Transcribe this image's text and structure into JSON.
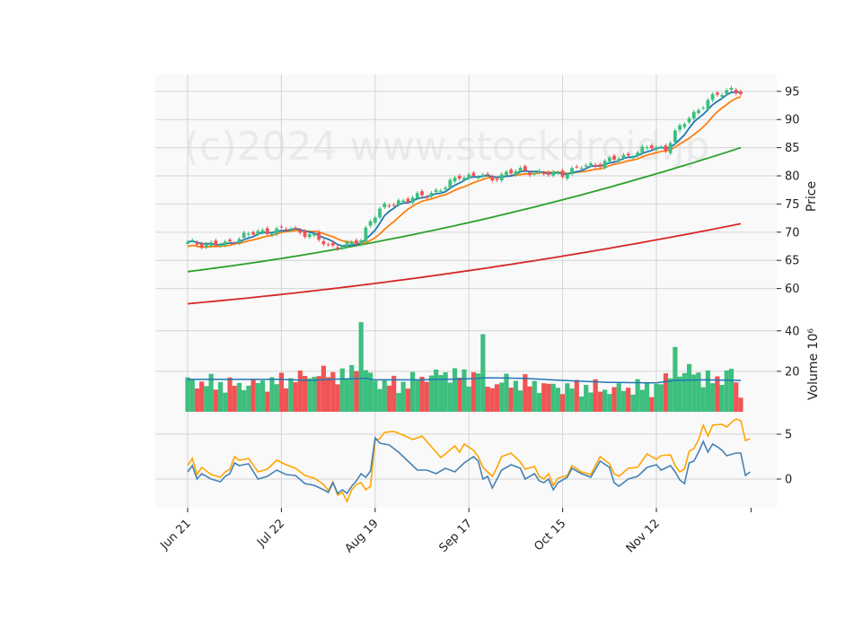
{
  "chart_data": {
    "type": "candlestick",
    "watermark": "(c)2024 www.stockdroid.jp",
    "colors": {
      "up": "#3dbf7e",
      "down": "#f05454",
      "ma_short": "#1f77b4",
      "ma_mid": "#ff7f0e",
      "ma_long": "#2ca02c",
      "ma_xlong": "#d62728",
      "volume_ma": "#1f77b4",
      "osc_line1": "#4682b4",
      "osc_line2": "#ffa500",
      "panel_bg": "#f9f9f9",
      "grid": "#d4d4d4"
    },
    "x_axis": {
      "tick_labels": [
        "Jun 21",
        "Jul 22",
        "Aug 19",
        "Sep 17",
        "Oct 15",
        "Nov 12"
      ],
      "tick_index": [
        0,
        20,
        40,
        60,
        80,
        100
      ],
      "n_days": 119
    },
    "price_panel": {
      "ylabel": "Price",
      "ylim": [
        55,
        98
      ],
      "ticks": [
        60,
        65,
        70,
        75,
        80,
        85,
        90,
        95
      ]
    },
    "volume_panel": {
      "ylabel": "Volume  10⁶",
      "ylim": [
        0,
        47
      ],
      "ticks": [
        20,
        40
      ]
    },
    "oscillator_panel": {
      "ylim": [
        -3.2,
        7.5
      ],
      "ticks": [
        0,
        5
      ]
    },
    "price_anchors": [
      [
        0,
        68
      ],
      [
        8,
        67.8
      ],
      [
        12,
        69.5
      ],
      [
        18,
        70.3
      ],
      [
        22,
        70.6
      ],
      [
        26,
        69.6
      ],
      [
        30,
        67.6
      ],
      [
        34,
        67.6
      ],
      [
        37,
        68.6
      ],
      [
        38,
        70.6
      ],
      [
        39,
        72.3
      ],
      [
        42,
        74.5
      ],
      [
        45,
        75.5
      ],
      [
        48,
        76
      ],
      [
        52,
        77
      ],
      [
        55,
        78
      ],
      [
        58,
        80
      ],
      [
        62,
        80
      ],
      [
        65,
        79.5
      ],
      [
        68,
        80.5
      ],
      [
        72,
        81
      ],
      [
        76,
        80.3
      ],
      [
        80,
        80.4
      ],
      [
        84,
        81.6
      ],
      [
        88,
        82.2
      ],
      [
        92,
        83.2
      ],
      [
        96,
        84.2
      ],
      [
        99,
        85.2
      ],
      [
        102,
        84.8
      ],
      [
        104,
        87.5
      ],
      [
        107,
        90.5
      ],
      [
        110,
        92.5
      ],
      [
        113,
        94.5
      ],
      [
        116,
        95.5
      ],
      [
        118,
        94.5
      ]
    ],
    "volume_anchors": [
      [
        0,
        15
      ],
      [
        10,
        13
      ],
      [
        20,
        15
      ],
      [
        26,
        18
      ],
      [
        30,
        19
      ],
      [
        34,
        17
      ],
      [
        36,
        24
      ],
      [
        37,
        44
      ],
      [
        38,
        20
      ],
      [
        40,
        15
      ],
      [
        45,
        13
      ],
      [
        50,
        17
      ],
      [
        55,
        19
      ],
      [
        60,
        17
      ],
      [
        62,
        20
      ],
      [
        63,
        35
      ],
      [
        64,
        13
      ],
      [
        68,
        15
      ],
      [
        72,
        14
      ],
      [
        76,
        13
      ],
      [
        80,
        12
      ],
      [
        85,
        12
      ],
      [
        90,
        11
      ],
      [
        95,
        12
      ],
      [
        100,
        12
      ],
      [
        103,
        18
      ],
      [
        104,
        34
      ],
      [
        105,
        17
      ],
      [
        108,
        22
      ],
      [
        110,
        15
      ],
      [
        114,
        17
      ],
      [
        116,
        20
      ],
      [
        118,
        8
      ]
    ],
    "volume_ma_anchors": [
      [
        0,
        16
      ],
      [
        20,
        16
      ],
      [
        26,
        15.5
      ],
      [
        30,
        16
      ],
      [
        38,
        16.5
      ],
      [
        40,
        15.8
      ],
      [
        50,
        15.8
      ],
      [
        60,
        16.3
      ],
      [
        64,
        16.8
      ],
      [
        72,
        16.5
      ],
      [
        80,
        15.5
      ],
      [
        90,
        14.5
      ],
      [
        100,
        14.3
      ],
      [
        104,
        15.5
      ],
      [
        110,
        15.8
      ],
      [
        118,
        15.5
      ]
    ],
    "osc1_anchors": [
      [
        0,
        0.8
      ],
      [
        1,
        1.5
      ],
      [
        2,
        0
      ],
      [
        3,
        0.6
      ],
      [
        5,
        0
      ],
      [
        7,
        -0.3
      ],
      [
        8,
        0.3
      ],
      [
        9,
        0.6
      ],
      [
        10,
        1.8
      ],
      [
        11,
        1.5
      ],
      [
        13,
        1.7
      ],
      [
        15,
        0
      ],
      [
        17,
        0.3
      ],
      [
        19,
        1
      ],
      [
        21,
        0.5
      ],
      [
        23,
        0.4
      ],
      [
        25,
        -0.5
      ],
      [
        27,
        -0.7
      ],
      [
        29,
        -1.2
      ],
      [
        30,
        -1.5
      ],
      [
        31,
        -0.4
      ],
      [
        32,
        -1.6
      ],
      [
        33,
        -1.2
      ],
      [
        34,
        -1.6
      ],
      [
        35,
        -0.8
      ],
      [
        36,
        -0.2
      ],
      [
        37,
        0.6
      ],
      [
        38,
        0.2
      ],
      [
        39,
        0.9
      ],
      [
        40,
        4.6
      ],
      [
        41,
        4
      ],
      [
        43,
        3.8
      ],
      [
        45,
        3
      ],
      [
        47,
        2
      ],
      [
        49,
        1
      ],
      [
        51,
        1
      ],
      [
        53,
        0.6
      ],
      [
        55,
        1.2
      ],
      [
        57,
        0.8
      ],
      [
        59,
        1.8
      ],
      [
        61,
        2.5
      ],
      [
        62,
        2
      ],
      [
        63,
        0
      ],
      [
        64,
        0.3
      ],
      [
        65,
        -1
      ],
      [
        66,
        0
      ],
      [
        67,
        1
      ],
      [
        69,
        1.6
      ],
      [
        71,
        1.2
      ],
      [
        72,
        0
      ],
      [
        74,
        0.6
      ],
      [
        75,
        -0.2
      ],
      [
        76,
        -0.4
      ],
      [
        77,
        0
      ],
      [
        78,
        -1.2
      ],
      [
        79,
        -0.4
      ],
      [
        81,
        0.2
      ],
      [
        82,
        1.2
      ],
      [
        84,
        0.6
      ],
      [
        86,
        0.2
      ],
      [
        88,
        2
      ],
      [
        90,
        1.3
      ],
      [
        91,
        -0.4
      ],
      [
        92,
        -0.8
      ],
      [
        94,
        0
      ],
      [
        96,
        0.3
      ],
      [
        98,
        1.3
      ],
      [
        100,
        1.6
      ],
      [
        101,
        1
      ],
      [
        103,
        1.5
      ],
      [
        104,
        0.8
      ],
      [
        105,
        -0.1
      ],
      [
        106,
        -0.5
      ],
      [
        107,
        1.8
      ],
      [
        108,
        2
      ],
      [
        109,
        3
      ],
      [
        110,
        4.2
      ],
      [
        111,
        3
      ],
      [
        112,
        3.9
      ],
      [
        113,
        3.6
      ],
      [
        114,
        3.2
      ],
      [
        115,
        2.6
      ],
      [
        117,
        2.9
      ],
      [
        118,
        2.9
      ],
      [
        119,
        0.4
      ],
      [
        120,
        0.8
      ]
    ],
    "osc2_anchors": [
      [
        0,
        1.5
      ],
      [
        1,
        2.3
      ],
      [
        2,
        0.5
      ],
      [
        3,
        1.3
      ],
      [
        5,
        0.5
      ],
      [
        7,
        0.2
      ],
      [
        8,
        0.8
      ],
      [
        9,
        1.1
      ],
      [
        10,
        2.5
      ],
      [
        11,
        2.1
      ],
      [
        13,
        2.3
      ],
      [
        15,
        0.8
      ],
      [
        17,
        1.1
      ],
      [
        19,
        2.1
      ],
      [
        21,
        1.6
      ],
      [
        23,
        1.2
      ],
      [
        25,
        0.4
      ],
      [
        27,
        0.1
      ],
      [
        29,
        -0.6
      ],
      [
        30,
        -1.3
      ],
      [
        31,
        -0.3
      ],
      [
        32,
        -1.8
      ],
      [
        33,
        -1.5
      ],
      [
        34,
        -2.5
      ],
      [
        35,
        -1.2
      ],
      [
        36,
        -0.6
      ],
      [
        37,
        -0.4
      ],
      [
        38,
        -1.2
      ],
      [
        39,
        -0.8
      ],
      [
        40,
        4.3
      ],
      [
        41,
        4.5
      ],
      [
        42,
        5.2
      ],
      [
        44,
        5.3
      ],
      [
        46,
        4.9
      ],
      [
        48,
        4.4
      ],
      [
        50,
        4.8
      ],
      [
        52,
        3.6
      ],
      [
        54,
        2.4
      ],
      [
        55,
        2.8
      ],
      [
        57,
        3.7
      ],
      [
        58,
        3
      ],
      [
        59,
        3.9
      ],
      [
        61,
        3.2
      ],
      [
        62,
        2.5
      ],
      [
        63,
        1.3
      ],
      [
        64,
        0.8
      ],
      [
        65,
        0.3
      ],
      [
        66,
        1.3
      ],
      [
        67,
        2.5
      ],
      [
        69,
        2.9
      ],
      [
        71,
        1.9
      ],
      [
        72,
        1.1
      ],
      [
        74,
        1.4
      ],
      [
        75,
        0.3
      ],
      [
        76,
        0
      ],
      [
        77,
        0.6
      ],
      [
        78,
        -0.7
      ],
      [
        79,
        0.1
      ],
      [
        81,
        0.4
      ],
      [
        82,
        1.5
      ],
      [
        84,
        0.8
      ],
      [
        86,
        0.5
      ],
      [
        88,
        2.5
      ],
      [
        90,
        1.7
      ],
      [
        91,
        0.6
      ],
      [
        92,
        0.3
      ],
      [
        94,
        1.2
      ],
      [
        96,
        1.3
      ],
      [
        98,
        2.8
      ],
      [
        100,
        2.2
      ],
      [
        101,
        2.6
      ],
      [
        103,
        2.7
      ],
      [
        104,
        1.5
      ],
      [
        105,
        0.8
      ],
      [
        106,
        1.1
      ],
      [
        107,
        3.1
      ],
      [
        108,
        3.4
      ],
      [
        109,
        4.4
      ],
      [
        110,
        6
      ],
      [
        111,
        4.8
      ],
      [
        112,
        6
      ],
      [
        114,
        6.1
      ],
      [
        115,
        5.8
      ],
      [
        116,
        6.3
      ],
      [
        117,
        6.7
      ],
      [
        118,
        6.5
      ],
      [
        119,
        4.3
      ],
      [
        120,
        4.5
      ]
    ]
  }
}
